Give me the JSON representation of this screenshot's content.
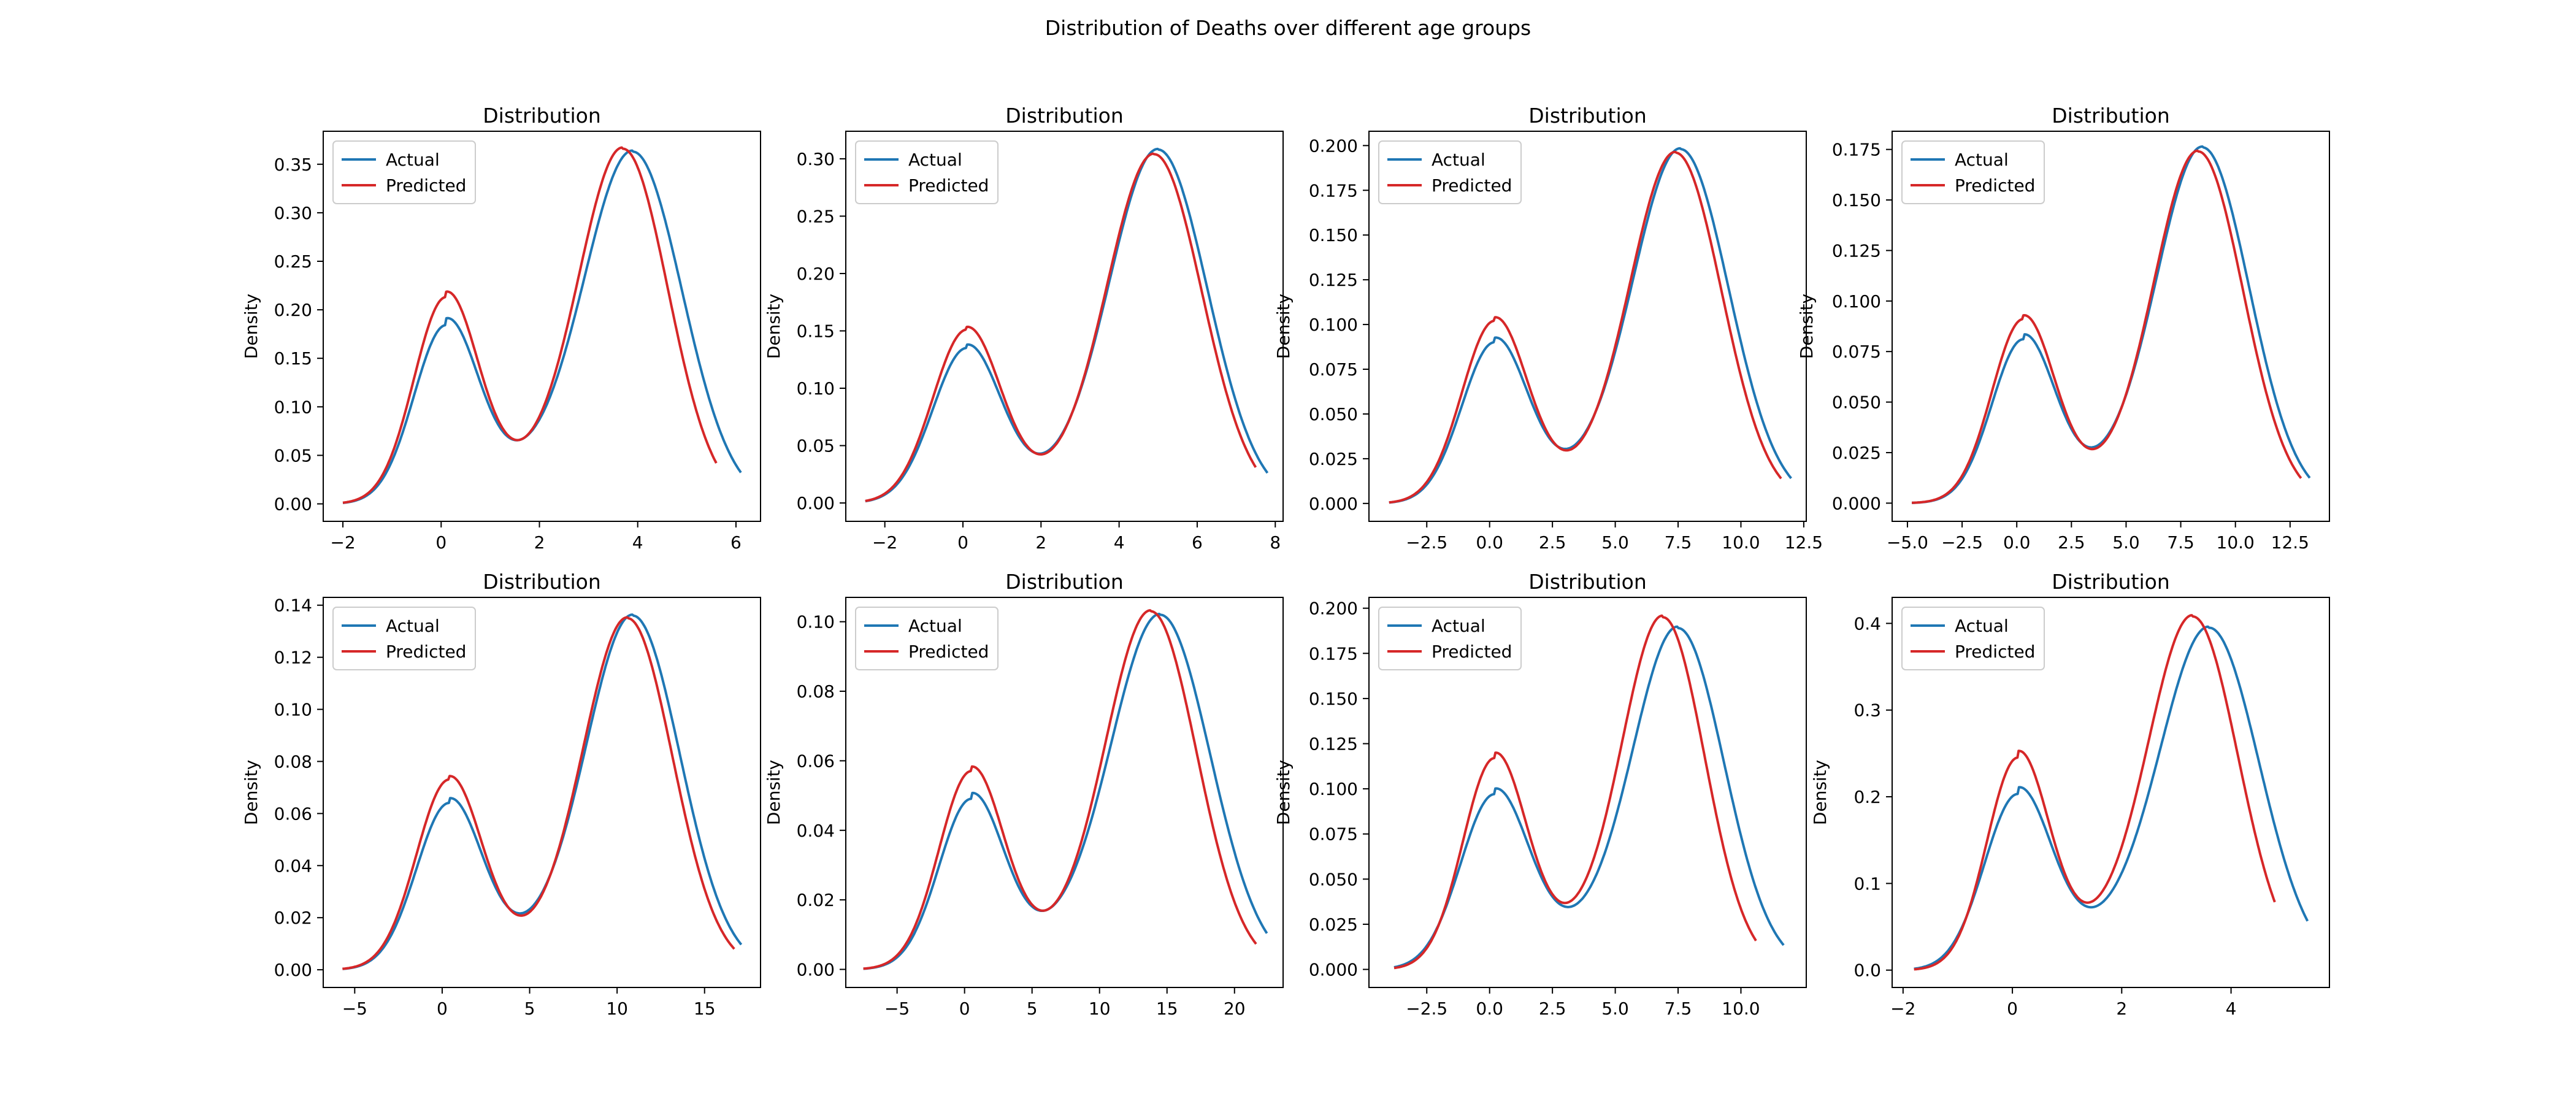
{
  "figure": {
    "title": "Distribution of Deaths over different age groups"
  },
  "colors": {
    "actual": "#1f77b4",
    "predicted": "#d62728"
  },
  "chart_data": [
    {
      "type": "line",
      "title": "Distribution",
      "xlabel": "",
      "ylabel": "Density",
      "legend_position": "top-left",
      "xlim": [
        -2.4,
        6.5
      ],
      "ylim": [
        -0.018,
        0.384
      ],
      "xticks": [
        -2,
        0,
        2,
        4,
        6
      ],
      "xtick_labels": [
        "−2",
        "0",
        "2",
        "4",
        "6"
      ],
      "yticks": [
        0,
        0.05,
        0.1,
        0.15,
        0.2,
        0.25,
        0.3,
        0.35
      ],
      "ytick_labels": [
        "0.00",
        "0.05",
        "0.10",
        "0.15",
        "0.20",
        "0.25",
        "0.30",
        "0.35"
      ],
      "series": [
        {
          "name": "Actual",
          "x_range": [
            -2,
            6.1
          ],
          "peaks": [
            {
              "x": 0.1,
              "y": 0.184
            },
            {
              "x": 3.9,
              "y": 0.363
            }
          ],
          "valley": {
            "x": 1.6,
            "y": 0.066
          }
        },
        {
          "name": "Predicted",
          "x_range": [
            -2,
            5.6
          ],
          "peaks": [
            {
              "x": 0.1,
              "y": 0.213
            },
            {
              "x": 3.7,
              "y": 0.366
            }
          ],
          "valley": {
            "x": 1.6,
            "y": 0.066
          }
        }
      ]
    },
    {
      "type": "line",
      "title": "Distribution",
      "xlabel": "",
      "ylabel": "Density",
      "legend_position": "top-left",
      "xlim": [
        -3.0,
        8.2
      ],
      "ylim": [
        -0.016,
        0.324
      ],
      "xticks": [
        -2,
        0,
        2,
        4,
        6,
        8
      ],
      "xtick_labels": [
        "−2",
        "0",
        "2",
        "4",
        "6",
        "8"
      ],
      "yticks": [
        0,
        0.05,
        0.1,
        0.15,
        0.2,
        0.25,
        0.3
      ],
      "ytick_labels": [
        "0.00",
        "0.05",
        "0.10",
        "0.15",
        "0.20",
        "0.25",
        "0.30"
      ],
      "series": [
        {
          "name": "Actual",
          "x_range": [
            -2.5,
            7.8
          ],
          "peaks": [
            {
              "x": 0.1,
              "y": 0.135
            },
            {
              "x": 5.0,
              "y": 0.308
            }
          ],
          "valley": {
            "x": 2.1,
            "y": 0.044
          }
        },
        {
          "name": "Predicted",
          "x_range": [
            -2.5,
            7.5
          ],
          "peaks": [
            {
              "x": 0.1,
              "y": 0.151
            },
            {
              "x": 4.9,
              "y": 0.304
            }
          ],
          "valley": {
            "x": 2.1,
            "y": 0.043
          }
        }
      ]
    },
    {
      "type": "line",
      "title": "Distribution",
      "xlabel": "",
      "ylabel": "Density",
      "legend_position": "top-left",
      "xlim": [
        -4.8,
        12.6
      ],
      "ylim": [
        -0.01,
        0.208
      ],
      "xticks": [
        -2.5,
        0,
        2.5,
        5,
        7.5,
        10,
        12.5
      ],
      "xtick_labels": [
        "−2.5",
        "0.0",
        "2.5",
        "5.0",
        "7.5",
        "10.0",
        "12.5"
      ],
      "yticks": [
        0,
        0.025,
        0.05,
        0.075,
        0.1,
        0.125,
        0.15,
        0.175,
        0.2
      ],
      "ytick_labels": [
        "0.000",
        "0.025",
        "0.050",
        "0.075",
        "0.100",
        "0.125",
        "0.150",
        "0.175",
        "0.200"
      ],
      "series": [
        {
          "name": "Actual",
          "x_range": [
            -4,
            12
          ],
          "peaks": [
            {
              "x": 0.2,
              "y": 0.09
            },
            {
              "x": 7.6,
              "y": 0.198
            }
          ],
          "valley": {
            "x": 3.2,
            "y": 0.031
          }
        },
        {
          "name": "Predicted",
          "x_range": [
            -4,
            11.6
          ],
          "peaks": [
            {
              "x": 0.2,
              "y": 0.102
            },
            {
              "x": 7.4,
              "y": 0.196
            }
          ],
          "valley": {
            "x": 3.2,
            "y": 0.03
          }
        }
      ]
    },
    {
      "type": "line",
      "title": "Distribution",
      "xlabel": "",
      "ylabel": "Density",
      "legend_position": "top-left",
      "xlim": [
        -5.7,
        14.3
      ],
      "ylim": [
        -0.009,
        0.184
      ],
      "xticks": [
        -5,
        -2.5,
        0,
        2.5,
        5,
        7.5,
        10,
        12.5
      ],
      "xtick_labels": [
        "−5.0",
        "−2.5",
        "0.0",
        "2.5",
        "5.0",
        "7.5",
        "10.0",
        "12.5"
      ],
      "yticks": [
        0,
        0.025,
        0.05,
        0.075,
        0.1,
        0.125,
        0.15,
        0.175
      ],
      "ytick_labels": [
        "0.000",
        "0.025",
        "0.050",
        "0.075",
        "0.100",
        "0.125",
        "0.150",
        "0.175"
      ],
      "series": [
        {
          "name": "Actual",
          "x_range": [
            -4.8,
            13.4
          ],
          "peaks": [
            {
              "x": 0.3,
              "y": 0.081
            },
            {
              "x": 8.5,
              "y": 0.176
            }
          ],
          "valley": {
            "x": 3.6,
            "y": 0.028
          }
        },
        {
          "name": "Predicted",
          "x_range": [
            -4.8,
            13.0
          ],
          "peaks": [
            {
              "x": 0.3,
              "y": 0.091
            },
            {
              "x": 8.3,
              "y": 0.174
            }
          ],
          "valley": {
            "x": 3.6,
            "y": 0.027
          }
        }
      ]
    },
    {
      "type": "line",
      "title": "Distribution",
      "xlabel": "",
      "ylabel": "Density",
      "legend_position": "top-left",
      "xlim": [
        -6.8,
        18.2
      ],
      "ylim": [
        -0.0068,
        0.143
      ],
      "xticks": [
        -5,
        0,
        5,
        10,
        15
      ],
      "xtick_labels": [
        "−5",
        "0",
        "5",
        "10",
        "15"
      ],
      "yticks": [
        0,
        0.02,
        0.04,
        0.06,
        0.08,
        0.1,
        0.12,
        0.14
      ],
      "ytick_labels": [
        "0.00",
        "0.02",
        "0.04",
        "0.06",
        "0.08",
        "0.10",
        "0.12",
        "0.14"
      ],
      "series": [
        {
          "name": "Actual",
          "x_range": [
            -5.7,
            17.1
          ],
          "peaks": [
            {
              "x": 0.4,
              "y": 0.064
            },
            {
              "x": 10.9,
              "y": 0.136
            }
          ],
          "valley": {
            "x": 4.7,
            "y": 0.022
          }
        },
        {
          "name": "Predicted",
          "x_range": [
            -5.7,
            16.7
          ],
          "peaks": [
            {
              "x": 0.4,
              "y": 0.073
            },
            {
              "x": 10.6,
              "y": 0.135
            }
          ],
          "valley": {
            "x": 4.7,
            "y": 0.021
          }
        }
      ]
    },
    {
      "type": "line",
      "title": "Distribution",
      "xlabel": "",
      "ylabel": "Density",
      "legend_position": "top-left",
      "xlim": [
        -8.8,
        23.6
      ],
      "ylim": [
        -0.0052,
        0.107
      ],
      "xticks": [
        -5,
        0,
        5,
        10,
        15,
        20
      ],
      "xtick_labels": [
        "−5",
        "0",
        "5",
        "10",
        "15",
        "20"
      ],
      "yticks": [
        0,
        0.02,
        0.04,
        0.06,
        0.08,
        0.1
      ],
      "ytick_labels": [
        "0.00",
        "0.02",
        "0.04",
        "0.06",
        "0.08",
        "0.10"
      ],
      "series": [
        {
          "name": "Actual",
          "x_range": [
            -7.5,
            22.4
          ],
          "peaks": [
            {
              "x": 0.5,
              "y": 0.049
            },
            {
              "x": 14.5,
              "y": 0.102
            }
          ],
          "valley": {
            "x": 6.0,
            "y": 0.017
          }
        },
        {
          "name": "Predicted",
          "x_range": [
            -7.5,
            21.6
          ],
          "peaks": [
            {
              "x": 0.5,
              "y": 0.057
            },
            {
              "x": 13.8,
              "y": 0.103
            }
          ],
          "valley": {
            "x": 6.0,
            "y": 0.017
          }
        }
      ]
    },
    {
      "type": "line",
      "title": "Distribution",
      "xlabel": "",
      "ylabel": "Density",
      "legend_position": "top-left",
      "xlim": [
        -4.8,
        12.6
      ],
      "ylim": [
        -0.01,
        0.206
      ],
      "xticks": [
        -2.5,
        0,
        2.5,
        5,
        7.5,
        10
      ],
      "xtick_labels": [
        "−2.5",
        "0.0",
        "2.5",
        "5.0",
        "7.5",
        "10.0"
      ],
      "yticks": [
        0,
        0.025,
        0.05,
        0.075,
        0.1,
        0.125,
        0.15,
        0.175,
        0.2
      ],
      "ytick_labels": [
        "0.000",
        "0.025",
        "0.050",
        "0.075",
        "0.100",
        "0.125",
        "0.150",
        "0.175",
        "0.200"
      ],
      "series": [
        {
          "name": "Actual",
          "x_range": [
            -3.8,
            11.7
          ],
          "peaks": [
            {
              "x": 0.2,
              "y": 0.097
            },
            {
              "x": 7.5,
              "y": 0.189
            }
          ],
          "valley": {
            "x": 3.3,
            "y": 0.035
          }
        },
        {
          "name": "Predicted",
          "x_range": [
            -3.8,
            10.6
          ],
          "peaks": [
            {
              "x": 0.2,
              "y": 0.117
            },
            {
              "x": 6.9,
              "y": 0.195
            }
          ],
          "valley": {
            "x": 3.1,
            "y": 0.037
          }
        }
      ]
    },
    {
      "type": "line",
      "title": "Distribution",
      "xlabel": "",
      "ylabel": "Density",
      "legend_position": "top-left",
      "xlim": [
        -2.2,
        5.8
      ],
      "ylim": [
        -0.02,
        0.43
      ],
      "xticks": [
        -2,
        0,
        2,
        4
      ],
      "xtick_labels": [
        "−2",
        "0",
        "2",
        "4"
      ],
      "yticks": [
        0,
        0.1,
        0.2,
        0.3,
        0.4
      ],
      "ytick_labels": [
        "0.0",
        "0.1",
        "0.2",
        "0.3",
        "0.4"
      ],
      "series": [
        {
          "name": "Actual",
          "x_range": [
            -1.8,
            5.4
          ],
          "peaks": [
            {
              "x": 0.1,
              "y": 0.203
            },
            {
              "x": 3.6,
              "y": 0.395
            }
          ],
          "valley": {
            "x": 1.5,
            "y": 0.073
          }
        },
        {
          "name": "Predicted",
          "x_range": [
            -1.8,
            4.8
          ],
          "peaks": [
            {
              "x": 0.1,
              "y": 0.245
            },
            {
              "x": 3.3,
              "y": 0.408
            }
          ],
          "valley": {
            "x": 1.4,
            "y": 0.078
          }
        }
      ]
    }
  ]
}
